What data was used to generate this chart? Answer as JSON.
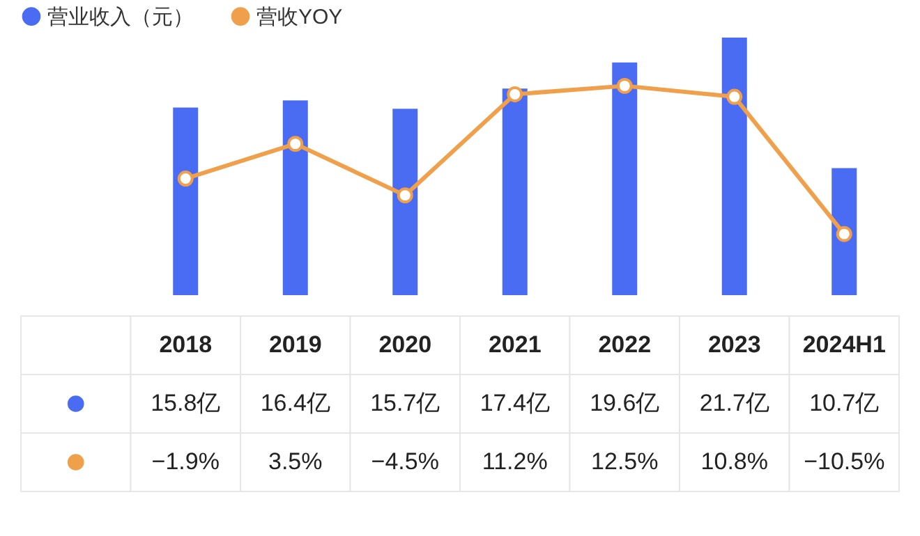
{
  "chart_data": {
    "type": "bar",
    "categories": [
      "2018",
      "2019",
      "2020",
      "2021",
      "2022",
      "2023",
      "2024H1"
    ],
    "series": [
      {
        "name": "营业收入（元）",
        "color": "#4a6cf2",
        "values": [
          15.8,
          16.4,
          15.7,
          17.4,
          19.6,
          21.7,
          10.7
        ],
        "value_labels": [
          "15.8亿",
          "16.4亿",
          "15.7亿",
          "17.4亿",
          "19.6亿",
          "21.7亿",
          "10.7亿"
        ]
      },
      {
        "name": "营收YOY",
        "type": "line",
        "axis": "y2",
        "color": "#f0a04b",
        "values": [
          -1.9,
          3.5,
          -4.5,
          11.2,
          12.5,
          10.8,
          -10.5
        ],
        "value_labels": [
          "−1.9%",
          "3.5%",
          "−4.5%",
          "11.2%",
          "12.5%",
          "10.8%",
          "−10.5%"
        ]
      }
    ],
    "marker": "circle",
    "legend": "top left",
    "grid": false
  }
}
